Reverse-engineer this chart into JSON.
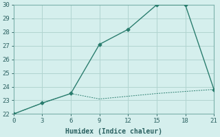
{
  "xlabel": "Humidex (Indice chaleur)",
  "line1_x": [
    0,
    3,
    6,
    9,
    12,
    15,
    18,
    21
  ],
  "line1_y": [
    22.0,
    22.8,
    23.5,
    27.1,
    28.2,
    30.0,
    30.0,
    23.8
  ],
  "line2_x": [
    0,
    3,
    6,
    9,
    12,
    15,
    18,
    21
  ],
  "line2_y": [
    22.0,
    22.8,
    23.5,
    23.1,
    23.3,
    23.5,
    23.65,
    23.8
  ],
  "line_color": "#2a7d6e",
  "bg_color": "#d5efed",
  "grid_color": "#b0d4d0",
  "spine_color": "#7ab0aa",
  "xlim": [
    0,
    21
  ],
  "ylim": [
    22,
    30
  ],
  "xticks": [
    0,
    3,
    6,
    9,
    12,
    15,
    18,
    21
  ],
  "yticks": [
    22,
    23,
    24,
    25,
    26,
    27,
    28,
    29,
    30
  ],
  "marker": "D",
  "markersize": 2.5,
  "linewidth1": 1.0,
  "linewidth2": 0.7,
  "tick_color": "#2a6060",
  "label_fontsize": 6.5,
  "xlabel_fontsize": 7.0
}
